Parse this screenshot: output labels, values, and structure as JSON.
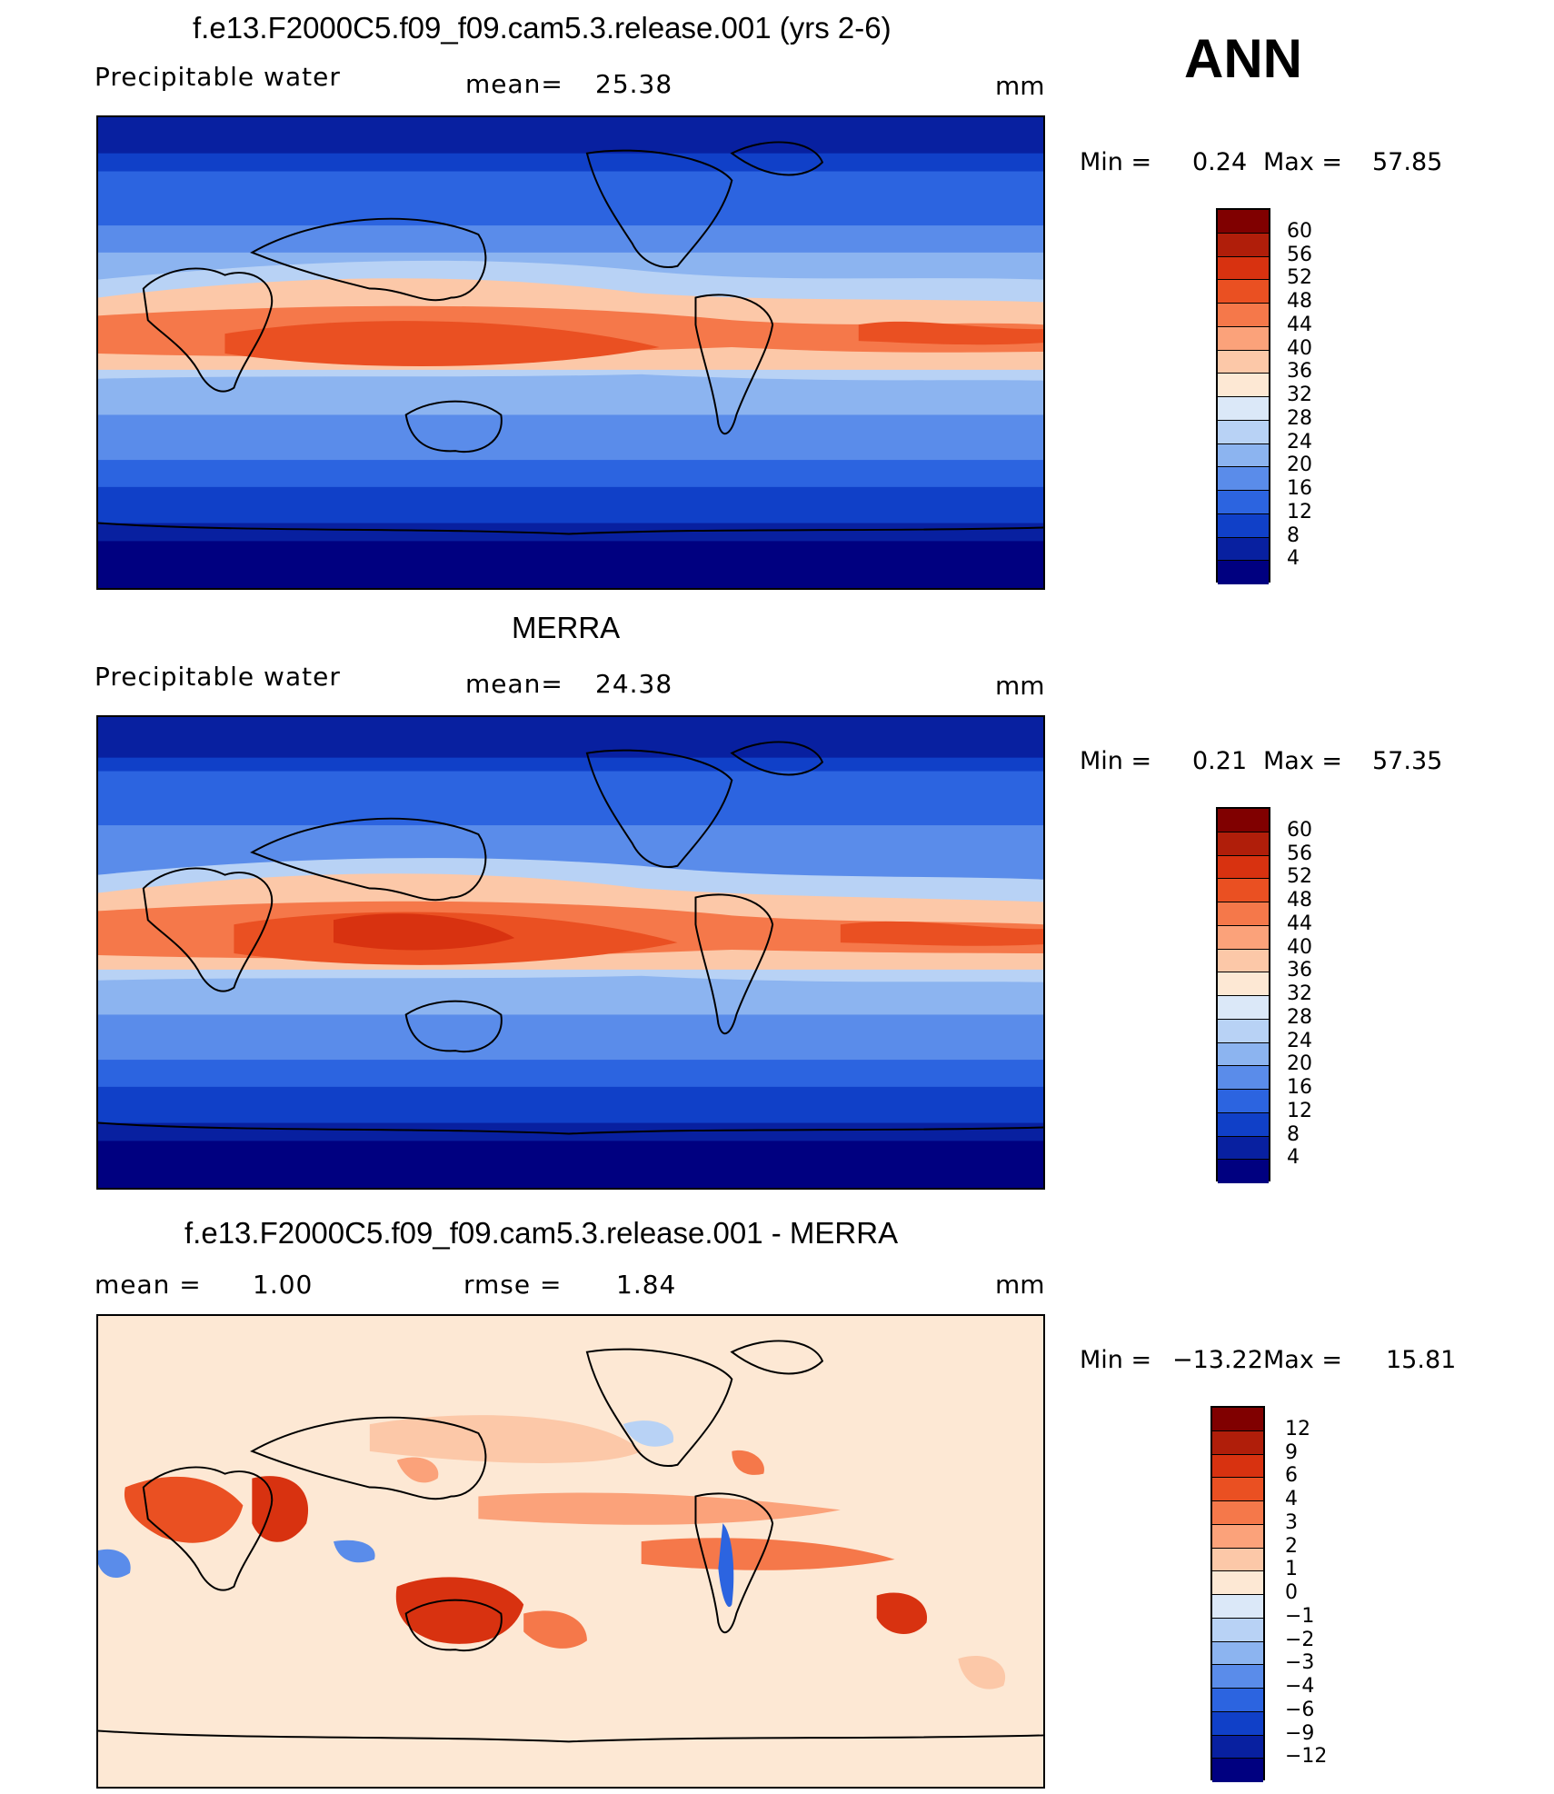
{
  "season": "ANN",
  "panels": [
    {
      "title": "f.e13.F2000C5.f09_f09.cam5.3.release.001 (yrs 2-6)",
      "left_label": "Precipitable  water",
      "mid_label": "mean=",
      "mid_value": "25.38",
      "units": "mm",
      "min_label": "Min  =",
      "min_value": "0.24",
      "max_label": "Max  =",
      "max_value": "57.85",
      "colorbar": {
        "labels": [
          "60",
          "56",
          "52",
          "48",
          "44",
          "40",
          "36",
          "32",
          "28",
          "24",
          "20",
          "16",
          "12",
          "8",
          "4"
        ],
        "colors": [
          "#800000",
          "#b01e0a",
          "#d83210",
          "#ea5022",
          "#f5784a",
          "#fba27a",
          "#fcc8a8",
          "#fde8d4",
          "#dbe8f8",
          "#b8d2f5",
          "#8cb4f0",
          "#5a8cea",
          "#2c64e0",
          "#1040c8",
          "#0820a0",
          "#000080"
        ]
      }
    },
    {
      "title": "MERRA",
      "left_label": "Precipitable  water",
      "mid_label": "mean=",
      "mid_value": "24.38",
      "units": "mm",
      "min_label": "Min  =",
      "min_value": "0.21",
      "max_label": "Max  =",
      "max_value": "57.35",
      "colorbar": {
        "labels": [
          "60",
          "56",
          "52",
          "48",
          "44",
          "40",
          "36",
          "32",
          "28",
          "24",
          "20",
          "16",
          "12",
          "8",
          "4"
        ],
        "colors": [
          "#800000",
          "#b01e0a",
          "#d83210",
          "#ea5022",
          "#f5784a",
          "#fba27a",
          "#fcc8a8",
          "#fde8d4",
          "#dbe8f8",
          "#b8d2f5",
          "#8cb4f0",
          "#5a8cea",
          "#2c64e0",
          "#1040c8",
          "#0820a0",
          "#000080"
        ]
      }
    },
    {
      "title": "f.e13.F2000C5.f09_f09.cam5.3.release.001 - MERRA",
      "left_label": "mean  =",
      "left_value": "1.00",
      "mid_label": "rmse  =",
      "mid_value": "1.84",
      "units": "mm",
      "min_label": "Min  =",
      "min_value": "−13.22",
      "max_label": "Max  =",
      "max_value": "15.81",
      "colorbar": {
        "labels": [
          "12",
          "9",
          "6",
          "4",
          "3",
          "2",
          "1",
          "0",
          "−1",
          "−2",
          "−3",
          "−4",
          "−6",
          "−9",
          "−12"
        ],
        "colors": [
          "#800000",
          "#b01e0a",
          "#d83210",
          "#ea5022",
          "#f5784a",
          "#fba27a",
          "#fcc8a8",
          "#fde8d4",
          "#dbe8f8",
          "#b8d2f5",
          "#8cb4f0",
          "#5a8cea",
          "#2c64e0",
          "#1040c8",
          "#0820a0",
          "#000080"
        ]
      }
    }
  ]
}
